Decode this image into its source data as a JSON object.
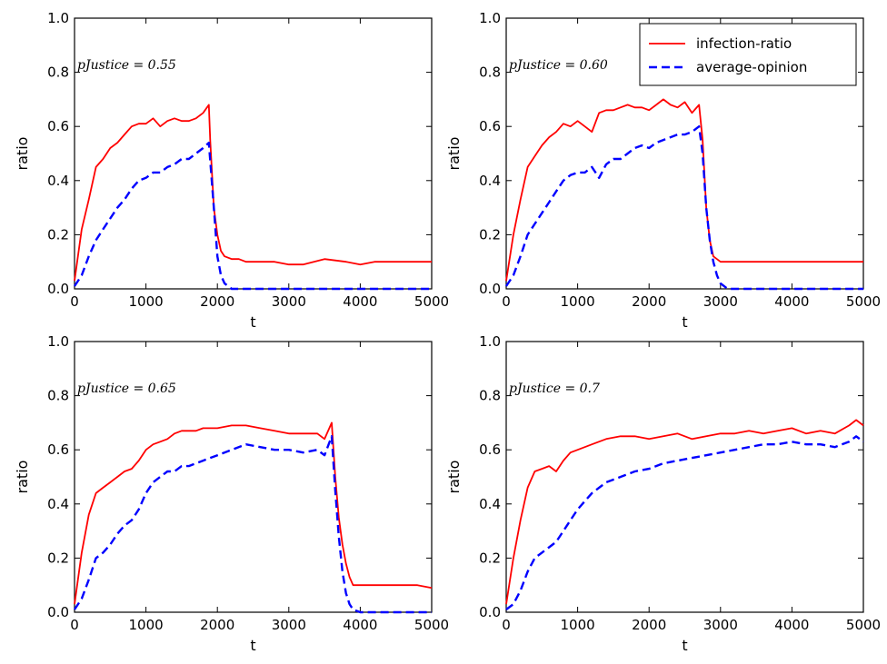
{
  "chart_data": [
    {
      "type": "line",
      "annotation": "pJustice = 0.55",
      "xlabel": "t",
      "ylabel": "ratio",
      "xlim": [
        0,
        5000
      ],
      "ylim": [
        0,
        1.0
      ],
      "xticks": [
        "0",
        "1000",
        "2000",
        "3000",
        "4000",
        "5000"
      ],
      "yticks": [
        "0.0",
        "0.2",
        "0.4",
        "0.6",
        "0.8",
        "1.0"
      ],
      "grid": false,
      "series": [
        {
          "name": "infection-ratio",
          "color": "#ff0000",
          "dash": "solid",
          "x": [
            0,
            100,
            200,
            300,
            400,
            500,
            600,
            700,
            800,
            900,
            1000,
            1100,
            1200,
            1300,
            1400,
            1500,
            1600,
            1700,
            1800,
            1880,
            1900,
            1950,
            2000,
            2050,
            2100,
            2200,
            2300,
            2400,
            2600,
            2800,
            3000,
            3200,
            3500,
            3800,
            4000,
            4200,
            4500,
            4800,
            5000
          ],
          "y": [
            0.03,
            0.22,
            0.33,
            0.45,
            0.48,
            0.52,
            0.54,
            0.57,
            0.6,
            0.61,
            0.61,
            0.63,
            0.6,
            0.62,
            0.63,
            0.62,
            0.62,
            0.63,
            0.65,
            0.68,
            0.55,
            0.3,
            0.2,
            0.14,
            0.12,
            0.11,
            0.11,
            0.1,
            0.1,
            0.1,
            0.09,
            0.09,
            0.11,
            0.1,
            0.09,
            0.1,
            0.1,
            0.1,
            0.1
          ]
        },
        {
          "name": "average-opinion",
          "color": "#0000ff",
          "dash": "dashed",
          "x": [
            0,
            100,
            200,
            300,
            400,
            500,
            600,
            700,
            800,
            900,
            1000,
            1100,
            1200,
            1300,
            1400,
            1500,
            1600,
            1700,
            1800,
            1880,
            1950,
            2000,
            2050,
            2100,
            2200,
            2300,
            2500,
            3000,
            4000,
            5000
          ],
          "y": [
            0.01,
            0.05,
            0.12,
            0.18,
            0.22,
            0.26,
            0.3,
            0.33,
            0.37,
            0.4,
            0.41,
            0.43,
            0.43,
            0.45,
            0.46,
            0.48,
            0.48,
            0.5,
            0.52,
            0.54,
            0.3,
            0.12,
            0.05,
            0.02,
            0.0,
            0.0,
            0.0,
            0.0,
            0.0,
            0.0
          ]
        }
      ],
      "legend": null
    },
    {
      "type": "line",
      "annotation": "pJustice = 0.60",
      "xlabel": "t",
      "ylabel": "ratio",
      "xlim": [
        0,
        5000
      ],
      "ylim": [
        0,
        1.0
      ],
      "xticks": [
        "0",
        "1000",
        "2000",
        "3000",
        "4000",
        "5000"
      ],
      "yticks": [
        "0.0",
        "0.2",
        "0.4",
        "0.6",
        "0.8",
        "1.0"
      ],
      "grid": false,
      "series": [
        {
          "name": "infection-ratio",
          "color": "#ff0000",
          "dash": "solid",
          "x": [
            0,
            100,
            200,
            300,
            400,
            500,
            600,
            700,
            800,
            900,
            1000,
            1100,
            1200,
            1300,
            1400,
            1500,
            1600,
            1700,
            1800,
            1900,
            2000,
            2100,
            2200,
            2300,
            2400,
            2500,
            2600,
            2700,
            2750,
            2800,
            2850,
            2900,
            3000,
            3200,
            3500,
            3800,
            4000,
            4300,
            4600,
            5000
          ],
          "y": [
            0.03,
            0.2,
            0.33,
            0.45,
            0.49,
            0.53,
            0.56,
            0.58,
            0.61,
            0.6,
            0.62,
            0.6,
            0.58,
            0.65,
            0.66,
            0.66,
            0.67,
            0.68,
            0.67,
            0.67,
            0.66,
            0.68,
            0.7,
            0.68,
            0.67,
            0.69,
            0.65,
            0.68,
            0.55,
            0.3,
            0.18,
            0.12,
            0.1,
            0.1,
            0.1,
            0.1,
            0.1,
            0.1,
            0.1,
            0.1
          ]
        },
        {
          "name": "average-opinion",
          "color": "#0000ff",
          "dash": "dashed",
          "x": [
            0,
            100,
            200,
            300,
            400,
            500,
            600,
            700,
            800,
            900,
            1000,
            1100,
            1200,
            1300,
            1400,
            1500,
            1600,
            1700,
            1800,
            1900,
            2000,
            2100,
            2200,
            2300,
            2400,
            2500,
            2600,
            2700,
            2750,
            2800,
            2850,
            2900,
            2950,
            3000,
            3100,
            4000,
            5000
          ],
          "y": [
            0.01,
            0.05,
            0.12,
            0.2,
            0.24,
            0.28,
            0.32,
            0.36,
            0.4,
            0.42,
            0.43,
            0.43,
            0.45,
            0.41,
            0.46,
            0.48,
            0.48,
            0.5,
            0.52,
            0.53,
            0.52,
            0.54,
            0.55,
            0.56,
            0.57,
            0.57,
            0.58,
            0.6,
            0.5,
            0.3,
            0.18,
            0.1,
            0.05,
            0.02,
            0.0,
            0.0,
            0.0
          ]
        }
      ],
      "legend": {
        "position": "top-right",
        "entries": [
          "infection-ratio",
          "average-opinion"
        ]
      }
    },
    {
      "type": "line",
      "annotation": "pJustice = 0.65",
      "xlabel": "t",
      "ylabel": "ratio",
      "xlim": [
        0,
        5000
      ],
      "ylim": [
        0,
        1.0
      ],
      "xticks": [
        "0",
        "1000",
        "2000",
        "3000",
        "4000",
        "5000"
      ],
      "yticks": [
        "0.0",
        "0.2",
        "0.4",
        "0.6",
        "0.8",
        "1.0"
      ],
      "grid": false,
      "series": [
        {
          "name": "infection-ratio",
          "color": "#ff0000",
          "dash": "solid",
          "x": [
            0,
            100,
            200,
            300,
            400,
            500,
            600,
            700,
            800,
            900,
            1000,
            1100,
            1200,
            1300,
            1400,
            1500,
            1600,
            1700,
            1800,
            1900,
            2000,
            2200,
            2400,
            2600,
            2800,
            3000,
            3200,
            3400,
            3500,
            3600,
            3650,
            3700,
            3750,
            3800,
            3850,
            3900,
            4000,
            4200,
            4500,
            4800,
            5000
          ],
          "y": [
            0.03,
            0.22,
            0.36,
            0.44,
            0.46,
            0.48,
            0.5,
            0.52,
            0.53,
            0.56,
            0.6,
            0.62,
            0.63,
            0.64,
            0.66,
            0.67,
            0.67,
            0.67,
            0.68,
            0.68,
            0.68,
            0.69,
            0.69,
            0.68,
            0.67,
            0.66,
            0.66,
            0.66,
            0.64,
            0.7,
            0.5,
            0.35,
            0.25,
            0.18,
            0.13,
            0.1,
            0.1,
            0.1,
            0.1,
            0.1,
            0.09
          ]
        },
        {
          "name": "average-opinion",
          "color": "#0000ff",
          "dash": "dashed",
          "x": [
            0,
            100,
            200,
            300,
            400,
            500,
            600,
            700,
            800,
            900,
            1000,
            1100,
            1200,
            1300,
            1400,
            1500,
            1600,
            1700,
            1800,
            1900,
            2000,
            2200,
            2400,
            2600,
            2800,
            3000,
            3200,
            3400,
            3500,
            3600,
            3650,
            3700,
            3750,
            3800,
            3850,
            3900,
            4000,
            5000
          ],
          "y": [
            0.01,
            0.05,
            0.12,
            0.2,
            0.22,
            0.25,
            0.29,
            0.32,
            0.34,
            0.38,
            0.44,
            0.48,
            0.5,
            0.52,
            0.52,
            0.54,
            0.54,
            0.55,
            0.56,
            0.57,
            0.58,
            0.6,
            0.62,
            0.61,
            0.6,
            0.6,
            0.59,
            0.6,
            0.58,
            0.65,
            0.45,
            0.28,
            0.15,
            0.07,
            0.03,
            0.01,
            0.0,
            0.0
          ]
        }
      ],
      "legend": null
    },
    {
      "type": "line",
      "annotation": "pJustice = 0.7",
      "xlabel": "t",
      "ylabel": "ratio",
      "xlim": [
        0,
        5000
      ],
      "ylim": [
        0,
        1.0
      ],
      "xticks": [
        "0",
        "1000",
        "2000",
        "3000",
        "4000",
        "5000"
      ],
      "yticks": [
        "0.0",
        "0.2",
        "0.4",
        "0.6",
        "0.8",
        "1.0"
      ],
      "grid": false,
      "series": [
        {
          "name": "infection-ratio",
          "color": "#ff0000",
          "dash": "solid",
          "x": [
            0,
            100,
            200,
            300,
            400,
            500,
            600,
            700,
            800,
            900,
            1000,
            1200,
            1400,
            1600,
            1800,
            2000,
            2200,
            2400,
            2600,
            2800,
            3000,
            3200,
            3400,
            3600,
            3800,
            4000,
            4200,
            4400,
            4600,
            4800,
            4900,
            5000
          ],
          "y": [
            0.03,
            0.2,
            0.34,
            0.46,
            0.52,
            0.53,
            0.54,
            0.52,
            0.56,
            0.59,
            0.6,
            0.62,
            0.64,
            0.65,
            0.65,
            0.64,
            0.65,
            0.66,
            0.64,
            0.65,
            0.66,
            0.66,
            0.67,
            0.66,
            0.67,
            0.68,
            0.66,
            0.67,
            0.66,
            0.69,
            0.71,
            0.69
          ]
        },
        {
          "name": "average-opinion",
          "color": "#0000ff",
          "dash": "dashed",
          "x": [
            0,
            100,
            200,
            300,
            400,
            500,
            600,
            700,
            800,
            900,
            1000,
            1200,
            1400,
            1600,
            1800,
            2000,
            2200,
            2400,
            2600,
            2800,
            3000,
            3200,
            3400,
            3600,
            3800,
            4000,
            4200,
            4400,
            4600,
            4800,
            4900,
            5000
          ],
          "y": [
            0.01,
            0.03,
            0.08,
            0.15,
            0.2,
            0.22,
            0.24,
            0.26,
            0.3,
            0.34,
            0.38,
            0.44,
            0.48,
            0.5,
            0.52,
            0.53,
            0.55,
            0.56,
            0.57,
            0.58,
            0.59,
            0.6,
            0.61,
            0.62,
            0.62,
            0.63,
            0.62,
            0.62,
            0.61,
            0.63,
            0.65,
            0.63
          ]
        }
      ],
      "legend": null
    }
  ]
}
